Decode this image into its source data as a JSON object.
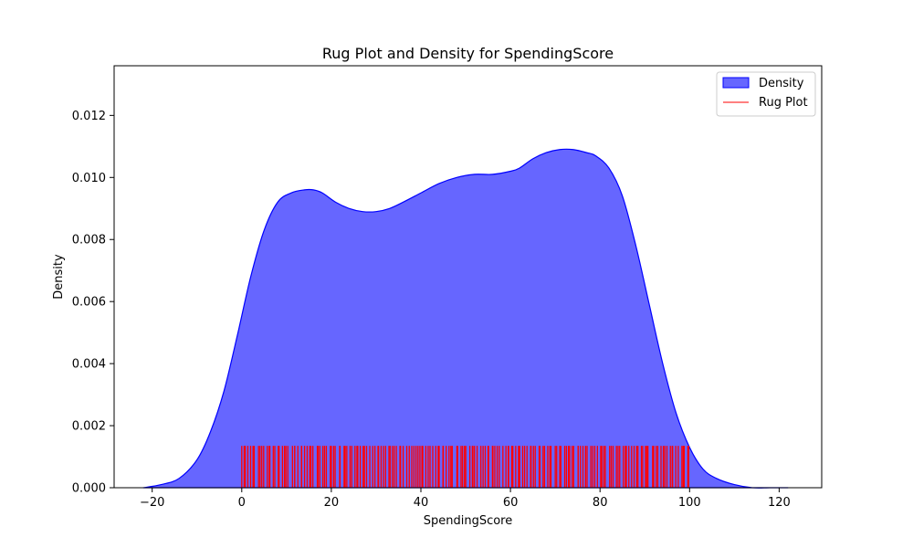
{
  "chart_data": {
    "type": "area",
    "title": "Rug Plot and Density for SpendingScore",
    "xlabel": "SpendingScore",
    "ylabel": "Density",
    "xlim": [
      -28.5,
      129.5
    ],
    "ylim": [
      0,
      0.0136
    ],
    "xticks": [
      -20,
      0,
      20,
      40,
      60,
      80,
      100,
      120
    ],
    "xtick_labels": [
      "−20",
      "0",
      "20",
      "40",
      "60",
      "80",
      "100",
      "120"
    ],
    "yticks": [
      0,
      0.002,
      0.004,
      0.006,
      0.008,
      0.01,
      0.012
    ],
    "ytick_labels": [
      "0.000",
      "0.002",
      "0.004",
      "0.006",
      "0.008",
      "0.010",
      "0.012"
    ],
    "grid": false,
    "legend_position": "top-right",
    "series": [
      {
        "name": "Density",
        "kind": "kde-area",
        "color": "#0000ff",
        "fill_alpha": 0.6,
        "x": [
          -22,
          -18,
          -14,
          -10,
          -7,
          -4,
          -1,
          2,
          5,
          8,
          11,
          14,
          16,
          18,
          21,
          24,
          27,
          30,
          33,
          36,
          40,
          44,
          48,
          52,
          56,
          60,
          62,
          65,
          68,
          71,
          74,
          77,
          79,
          82,
          85,
          88,
          91,
          94,
          97,
          100,
          103,
          106,
          110,
          114,
          118,
          122
        ],
        "y": [
          0.0,
          0.0001,
          0.0003,
          0.0009,
          0.0018,
          0.0031,
          0.0049,
          0.0068,
          0.0083,
          0.0092,
          0.0095,
          0.0096,
          0.0096,
          0.0095,
          0.0092,
          0.009,
          0.0089,
          0.0089,
          0.009,
          0.0092,
          0.0095,
          0.0098,
          0.01,
          0.0101,
          0.0101,
          0.0102,
          0.0103,
          0.0106,
          0.0108,
          0.0109,
          0.0109,
          0.0108,
          0.0107,
          0.0103,
          0.0094,
          0.0078,
          0.0059,
          0.004,
          0.0024,
          0.0013,
          0.0006,
          0.0003,
          0.0001,
          0.0,
          0.0,
          0.0
        ]
      },
      {
        "name": "Rug Plot",
        "kind": "rug",
        "color": "#ff0000",
        "height": 0.00135,
        "x_range": [
          0,
          100
        ],
        "count": 200
      }
    ]
  }
}
